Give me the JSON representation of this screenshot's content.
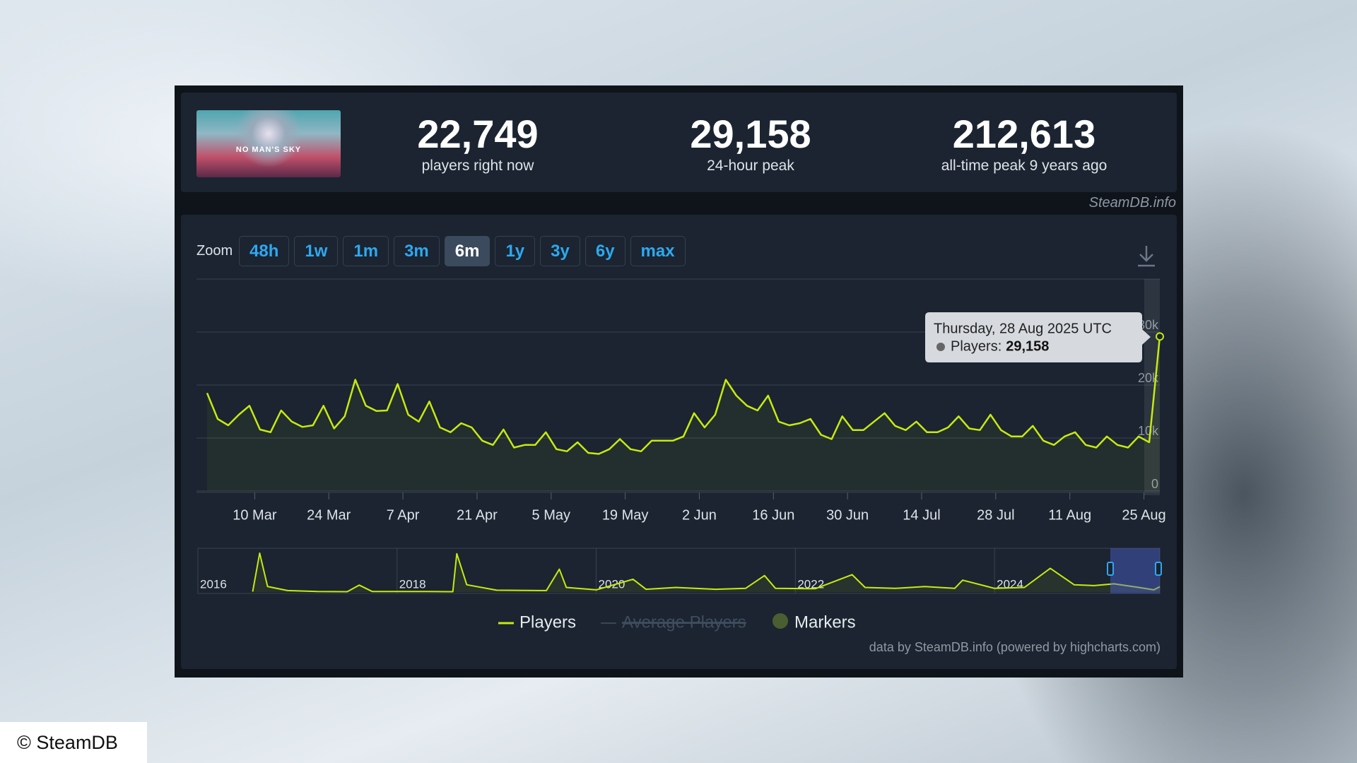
{
  "header": {
    "image_text": "NO MAN'S SKY",
    "stats": [
      {
        "value": "22,749",
        "label": "players right now"
      },
      {
        "value": "29,158",
        "label": "24-hour peak"
      },
      {
        "value": "212,613",
        "label": "all-time peak 9 years ago"
      }
    ],
    "source": "SteamDB.info"
  },
  "zoom": {
    "label": "Zoom",
    "buttons": [
      "48h",
      "1w",
      "1m",
      "3m",
      "6m",
      "1y",
      "3y",
      "6y",
      "max"
    ],
    "active": "6m"
  },
  "chart_data": [
    {
      "type": "line",
      "x": [
        "1 Mar",
        "3 Mar",
        "5 Mar",
        "7 Mar",
        "9 Mar",
        "11 Mar",
        "13 Mar",
        "15 Mar",
        "17 Mar",
        "19 Mar",
        "21 Mar",
        "23 Mar",
        "25 Mar",
        "27 Mar",
        "29 Mar",
        "31 Mar",
        "2 Apr",
        "4 Apr",
        "6 Apr",
        "8 Apr",
        "10 Apr",
        "12 Apr",
        "14 Apr",
        "16 Apr",
        "18 Apr",
        "20 Apr",
        "22 Apr",
        "24 Apr",
        "26 Apr",
        "28 Apr",
        "30 Apr",
        "2 May",
        "4 May",
        "6 May",
        "8 May",
        "10 May",
        "12 May",
        "14 May",
        "16 May",
        "18 May",
        "20 May",
        "22 May",
        "24 May",
        "26 May",
        "28 May",
        "30 May",
        "1 Jun",
        "3 Jun",
        "5 Jun",
        "7 Jun",
        "9 Jun",
        "11 Jun",
        "13 Jun",
        "15 Jun",
        "17 Jun",
        "19 Jun",
        "21 Jun",
        "23 Jun",
        "25 Jun",
        "27 Jun",
        "29 Jun",
        "1 Jul",
        "3 Jul",
        "5 Jul",
        "7 Jul",
        "9 Jul",
        "11 Jul",
        "13 Jul",
        "15 Jul",
        "17 Jul",
        "19 Jul",
        "21 Jul",
        "23 Jul",
        "25 Jul",
        "27 Jul",
        "29 Jul",
        "31 Jul",
        "2 Aug",
        "4 Aug",
        "6 Aug",
        "8 Aug",
        "10 Aug",
        "12 Aug",
        "14 Aug",
        "16 Aug",
        "18 Aug",
        "20 Aug",
        "22 Aug",
        "24 Aug",
        "26 Aug",
        "28 Aug"
      ],
      "series": [
        {
          "name": "Players",
          "color": "#c6ea10",
          "values": [
            18500,
            13600,
            12400,
            14400,
            16100,
            11600,
            11100,
            15200,
            13100,
            12100,
            12400,
            16100,
            11800,
            14100,
            21000,
            16100,
            15100,
            15200,
            20200,
            14400,
            13100,
            16900,
            12000,
            11100,
            12800,
            12000,
            9500,
            8700,
            11600,
            8200,
            8700,
            8700,
            11100,
            7900,
            7500,
            9200,
            7200,
            7000,
            7900,
            9800,
            7900,
            7500,
            9500,
            9500,
            9500,
            10300,
            14700,
            12000,
            14400,
            21000,
            18000,
            16100,
            15200,
            18000,
            13100,
            12400,
            12800,
            13600,
            10600,
            9800,
            14100,
            11500,
            11500,
            13100,
            14700,
            12300,
            11500,
            13100,
            11100,
            11100,
            12000,
            14100,
            11800,
            11500,
            14400,
            11500,
            10300,
            10300,
            12300,
            9500,
            8700,
            10300,
            11100,
            8700,
            8200,
            10300,
            8700,
            8200,
            10300,
            9200,
            29158
          ]
        }
      ],
      "xlim": [
        "28 Feb",
        "28 Aug"
      ],
      "xticks": [
        "10 Mar",
        "24 Mar",
        "7 Apr",
        "21 Apr",
        "5 May",
        "19 May",
        "2 Jun",
        "16 Jun",
        "30 Jun",
        "14 Jul",
        "28 Jul",
        "11 Aug",
        "25 Aug"
      ],
      "ylim": [
        0,
        40000
      ],
      "yticks": [
        0,
        {
          "value": 10000,
          "label": "10k"
        },
        {
          "value": 20000,
          "label": "20k"
        },
        {
          "value": 30000,
          "label": "30k"
        }
      ],
      "grid": true
    },
    {
      "type": "line",
      "x": [
        2016.55,
        2016.62,
        2016.7,
        2016.9,
        2017.2,
        2017.5,
        2017.62,
        2017.75,
        2018.0,
        2018.3,
        2018.56,
        2018.6,
        2018.7,
        2019.0,
        2019.5,
        2019.63,
        2019.7,
        2020.0,
        2020.37,
        2020.5,
        2020.8,
        2021.2,
        2021.5,
        2021.69,
        2021.8,
        2022.2,
        2022.57,
        2022.7,
        2023.0,
        2023.3,
        2023.6,
        2023.68,
        2024.0,
        2024.3,
        2024.56,
        2024.8,
        2025.0,
        2025.2,
        2025.45,
        2025.6,
        2025.66
      ],
      "series": [
        {
          "color": "#c6ea10",
          "values": [
            2000,
            212613,
            30000,
            8000,
            3000,
            2000,
            38000,
            3000,
            3000,
            3000,
            2000,
            210000,
            40000,
            10000,
            8000,
            125000,
            25000,
            12000,
            70000,
            15000,
            25000,
            15000,
            20000,
            90000,
            20000,
            18000,
            95000,
            25000,
            20000,
            30000,
            20000,
            65000,
            20000,
            25000,
            130000,
            40000,
            35000,
            45000,
            25000,
            12000,
            29158
          ]
        }
      ],
      "xlim": [
        2016,
        2025.66
      ],
      "xticks": [
        2016,
        2018,
        2020,
        2022,
        2024
      ],
      "ylim": [
        0,
        232000
      ]
    }
  ],
  "legend": [
    "Average Players",
    "Markers"
  ],
  "tooltip": {
    "date": "Thursday, 28 Aug 2025 UTC",
    "label": "Players:",
    "value": "29,158"
  },
  "credit": "data by SteamDB.info (powered by highcharts.com)",
  "copyright": "© SteamDB"
}
